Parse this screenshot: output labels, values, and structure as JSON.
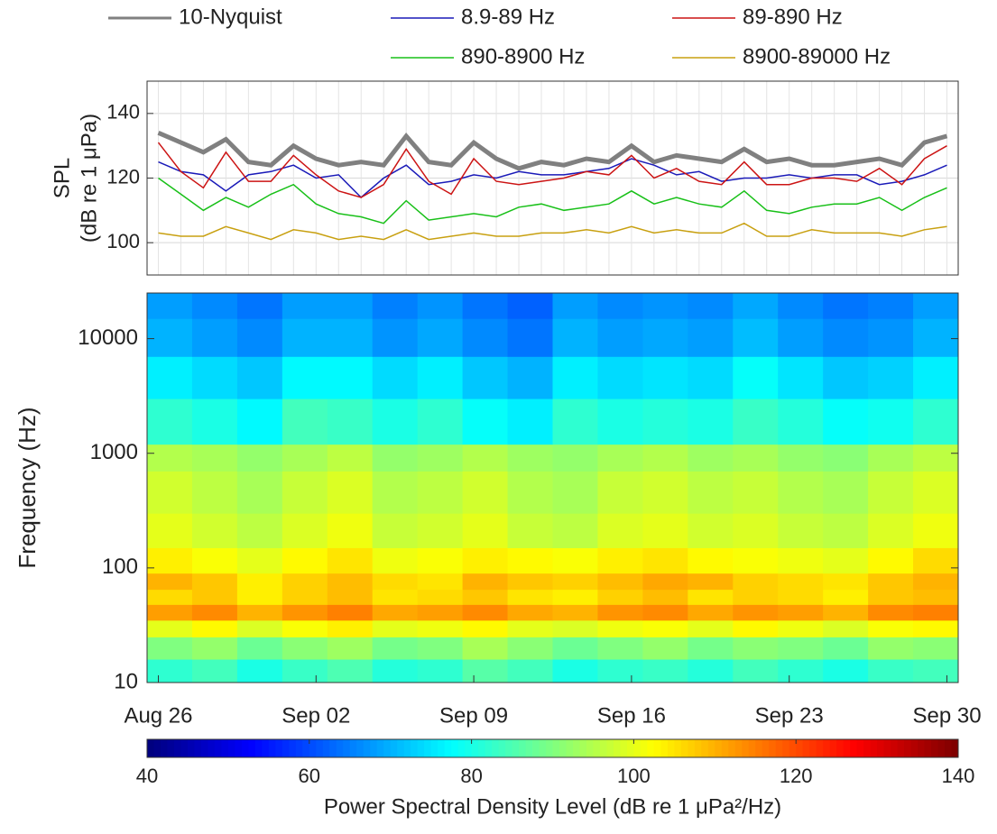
{
  "chart_data": [
    {
      "type": "line",
      "ylabel": [
        "SPL",
        "(dB re 1 μPa)"
      ],
      "x": [
        "Aug 26",
        "Aug 27",
        "Aug 28",
        "Aug 29",
        "Aug 30",
        "Aug 31",
        "Sep 01",
        "Sep 02",
        "Sep 03",
        "Sep 04",
        "Sep 05",
        "Sep 06",
        "Sep 07",
        "Sep 08",
        "Sep 09",
        "Sep 10",
        "Sep 11",
        "Sep 12",
        "Sep 13",
        "Sep 14",
        "Sep 15",
        "Sep 16",
        "Sep 17",
        "Sep 18",
        "Sep 19",
        "Sep 20",
        "Sep 21",
        "Sep 22",
        "Sep 23",
        "Sep 24",
        "Sep 25",
        "Sep 26",
        "Sep 27",
        "Sep 28",
        "Sep 29",
        "Sep 30"
      ],
      "ylim": [
        90,
        150
      ],
      "yticks": [
        100,
        120,
        140
      ],
      "grid": true,
      "series": [
        {
          "name": "10-Nyquist",
          "color": "#808080",
          "values": [
            134,
            131,
            128,
            132,
            125,
            124,
            130,
            126,
            124,
            125,
            124,
            133,
            125,
            124,
            131,
            126,
            123,
            125,
            124,
            126,
            125,
            130,
            125,
            127,
            126,
            125,
            129,
            125,
            126,
            124,
            124,
            125,
            126,
            124,
            131,
            133
          ]
        },
        {
          "name": "8.9-89 Hz",
          "color": "#1a1ab8",
          "values": [
            125,
            122,
            121,
            116,
            121,
            122,
            124,
            120,
            121,
            114,
            120,
            124,
            118,
            119,
            121,
            120,
            122,
            121,
            121,
            122,
            123,
            126,
            124,
            121,
            122,
            119,
            120,
            120,
            121,
            120,
            121,
            121,
            118,
            119,
            121,
            124
          ]
        },
        {
          "name": "89-890 Hz",
          "color": "#cc1414",
          "values": [
            131,
            122,
            117,
            128,
            119,
            119,
            127,
            121,
            116,
            114,
            118,
            129,
            119,
            115,
            126,
            119,
            118,
            119,
            120,
            122,
            121,
            127,
            120,
            123,
            119,
            118,
            125,
            118,
            118,
            120,
            120,
            119,
            123,
            118,
            126,
            130
          ]
        },
        {
          "name": "890-8900 Hz",
          "color": "#18c018",
          "values": [
            120,
            115,
            110,
            114,
            111,
            115,
            118,
            112,
            109,
            108,
            106,
            113,
            107,
            108,
            109,
            108,
            111,
            112,
            110,
            111,
            112,
            116,
            112,
            114,
            112,
            111,
            116,
            110,
            109,
            111,
            112,
            112,
            114,
            110,
            114,
            117
          ]
        },
        {
          "name": "8900-89000 Hz",
          "color": "#c8a010",
          "values": [
            103,
            102,
            102,
            105,
            103,
            101,
            104,
            103,
            101,
            102,
            101,
            104,
            101,
            102,
            103,
            102,
            102,
            103,
            103,
            104,
            103,
            105,
            103,
            104,
            103,
            103,
            106,
            102,
            102,
            104,
            103,
            103,
            103,
            102,
            104,
            105
          ]
        }
      ]
    },
    {
      "type": "heatmap",
      "ylabel": "Frequency (Hz)",
      "x": [
        "Aug 26",
        "Aug 28",
        "Aug 30",
        "Sep 01",
        "Sep 03",
        "Sep 05",
        "Sep 07",
        "Sep 09",
        "Sep 11",
        "Sep 13",
        "Sep 15",
        "Sep 17",
        "Sep 19",
        "Sep 21",
        "Sep 23",
        "Sep 25",
        "Sep 27",
        "Sep 29"
      ],
      "xticks": [
        "Aug 26",
        "Sep 02",
        "Sep 09",
        "Sep 16",
        "Sep 23",
        "Sep 30"
      ],
      "y_bins": [
        10,
        16,
        25,
        35,
        48,
        65,
        90,
        150,
        300,
        700,
        1200,
        3000,
        7000,
        15000,
        25000
      ],
      "ylim": [
        10,
        25000
      ],
      "log_y": true,
      "yticks": [
        10,
        100,
        1000,
        10000
      ],
      "colormap": "jet",
      "values": [
        [
          82,
          84,
          80,
          83,
          85,
          81,
          82,
          86,
          84,
          80,
          82,
          83,
          81,
          84,
          82,
          80,
          83,
          84
        ],
        [
          90,
          92,
          88,
          91,
          93,
          89,
          90,
          94,
          91,
          88,
          90,
          92,
          89,
          91,
          90,
          88,
          92,
          91
        ],
        [
          100,
          103,
          99,
          102,
          104,
          100,
          101,
          103,
          100,
          99,
          101,
          102,
          100,
          103,
          101,
          99,
          102,
          103
        ],
        [
          112,
          114,
          110,
          113,
          115,
          111,
          112,
          114,
          111,
          110,
          113,
          114,
          111,
          113,
          112,
          110,
          114,
          115
        ],
        [
          106,
          108,
          104,
          107,
          109,
          105,
          106,
          108,
          105,
          104,
          107,
          109,
          105,
          107,
          106,
          104,
          108,
          109
        ],
        [
          110,
          108,
          104,
          107,
          109,
          106,
          105,
          110,
          108,
          107,
          109,
          111,
          110,
          107,
          106,
          105,
          108,
          110
        ],
        [
          104,
          102,
          100,
          103,
          105,
          101,
          102,
          104,
          103,
          102,
          104,
          105,
          103,
          102,
          101,
          100,
          103,
          106
        ],
        [
          100,
          98,
          96,
          99,
          101,
          97,
          98,
          100,
          97,
          96,
          99,
          100,
          98,
          99,
          97,
          96,
          99,
          101
        ],
        [
          98,
          96,
          94,
          97,
          99,
          95,
          96,
          98,
          95,
          94,
          97,
          98,
          96,
          97,
          95,
          94,
          97,
          99
        ],
        [
          95,
          94,
          92,
          94,
          96,
          92,
          93,
          95,
          93,
          92,
          94,
          95,
          93,
          94,
          92,
          91,
          94,
          96
        ],
        [
          82,
          80,
          77,
          84,
          83,
          80,
          82,
          78,
          76,
          82,
          80,
          81,
          80,
          83,
          81,
          78,
          79,
          82
        ],
        [
          76,
          74,
          72,
          77,
          77,
          74,
          76,
          72,
          70,
          76,
          74,
          75,
          74,
          78,
          75,
          72,
          73,
          76
        ],
        [
          70,
          68,
          66,
          70,
          70,
          67,
          69,
          66,
          64,
          70,
          68,
          69,
          68,
          71,
          68,
          66,
          67,
          70
        ],
        [
          68,
          66,
          64,
          68,
          68,
          65,
          67,
          64,
          62,
          68,
          66,
          67,
          66,
          69,
          66,
          64,
          65,
          68
        ]
      ],
      "colorbar": {
        "label": "Power Spectral Density Level (dB re 1 μPa²/Hz)",
        "clim": [
          40,
          140
        ],
        "ticks": [
          40,
          60,
          80,
          100,
          120,
          140
        ]
      }
    }
  ]
}
